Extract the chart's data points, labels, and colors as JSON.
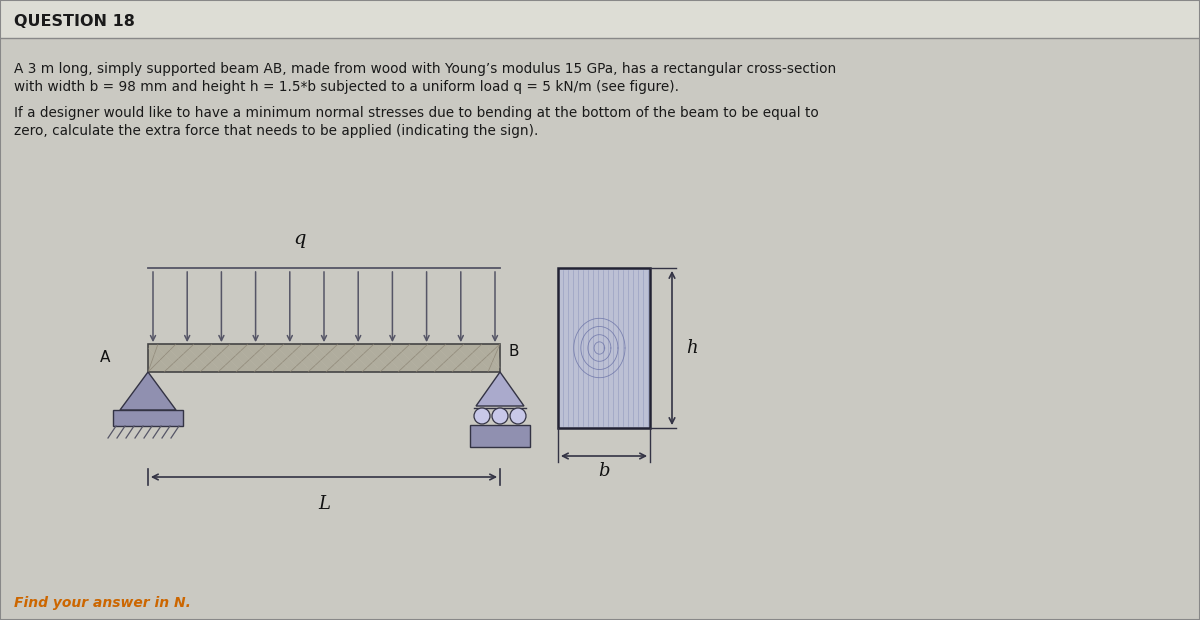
{
  "title": "QUESTION 18",
  "line1": "A 3 m long, simply supported beam AB, made from wood with Young’s modulus 15 GPa, has a rectangular cross-section",
  "line2": "with width b = 98 mm and height h = 1.5*b subjected to a uniform load q = 5 kN/m (see figure).",
  "line3": "If a designer would like to have a minimum normal stresses due to bending at the bottom of the beam to be equal to",
  "line4": "zero, calculate the extra force that needs to be applied (indicating the sign).",
  "footer": "Find your answer in N.",
  "bg_color": "#cac9c2",
  "header_bg": "#ddddd5",
  "text_color": "#1a1a1a",
  "beam_fill": "#b8b5a5",
  "beam_edge": "#444444",
  "support_fill": "#9090aa",
  "support_edge": "#333344",
  "roller_fill": "#aaaacc",
  "ground_fill": "#8888a8",
  "arrow_color": "#555566",
  "dim_color": "#333344",
  "wood_cs_fill": "#c0c4d8",
  "wood_cs_edge": "#222233",
  "wood_grain_color": "#7878a0",
  "label_q": "q",
  "label_A": "A",
  "label_B": "B",
  "label_L": "L",
  "label_h": "h",
  "label_b": "b"
}
